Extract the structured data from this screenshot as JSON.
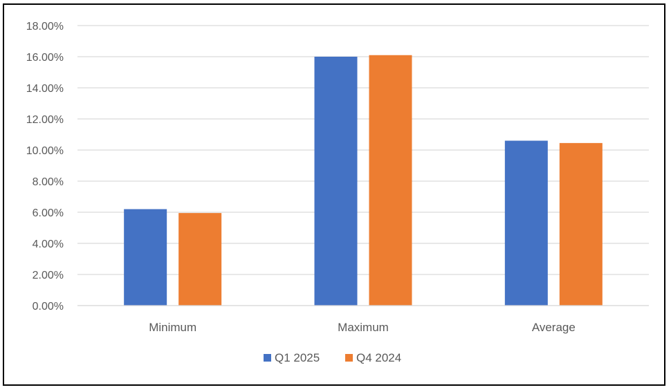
{
  "chart_data": {
    "type": "bar",
    "title": "",
    "xlabel": "",
    "ylabel": "",
    "categories": [
      "Minimum",
      "Maximum",
      "Average"
    ],
    "series": [
      {
        "name": "Q1 2025",
        "values": [
          6.2,
          16.0,
          10.6
        ],
        "color": "#4472C4"
      },
      {
        "name": "Q4 2024",
        "values": [
          5.95,
          16.1,
          10.45
        ],
        "color": "#ED7D31"
      }
    ],
    "ylim": [
      0,
      18
    ],
    "yticks": [
      0,
      2,
      4,
      6,
      8,
      10,
      12,
      14,
      16,
      18
    ],
    "ytick_labels": [
      "0.00%",
      "2.00%",
      "4.00%",
      "6.00%",
      "8.00%",
      "10.00%",
      "12.00%",
      "14.00%",
      "16.00%",
      "18.00%"
    ],
    "grid": true,
    "legend_position": "bottom",
    "gridline_color": "#D9D9D9",
    "text_color": "#595959"
  }
}
